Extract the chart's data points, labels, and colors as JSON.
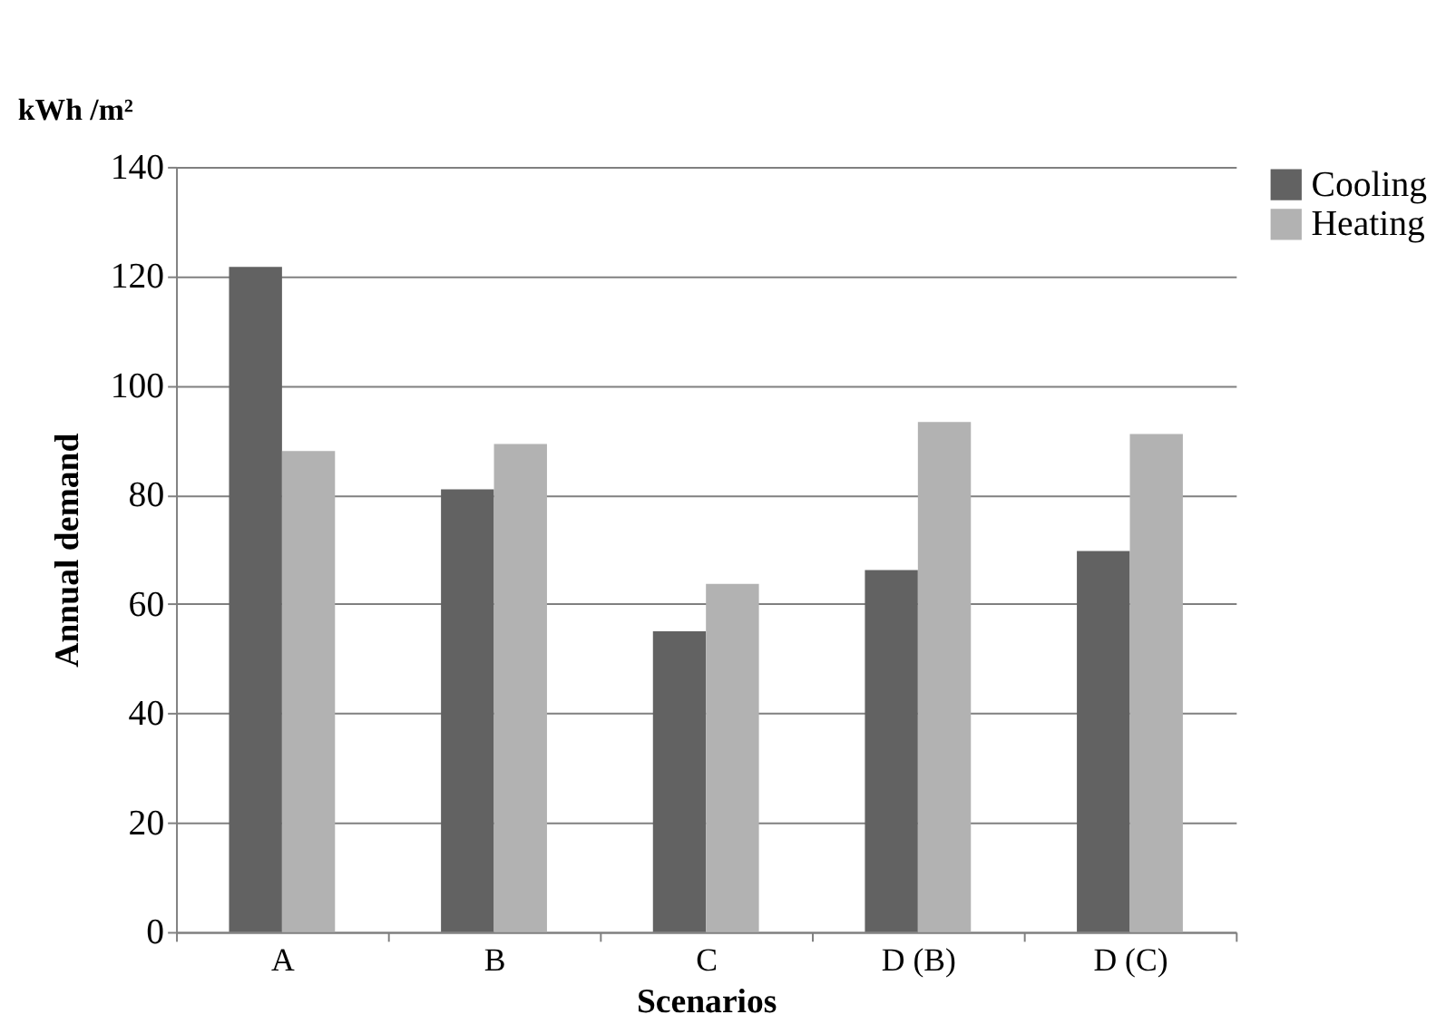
{
  "chart_data": {
    "type": "bar",
    "xlabel": "Scenarios",
    "ylabel": "Annual demand",
    "annotations": [
      "kWh /m²"
    ],
    "categories": [
      "A",
      "B",
      "C",
      "D (B)",
      "D (C)"
    ],
    "series": [
      {
        "name": "Cooling",
        "color": "#626262",
        "values": [
          121.7,
          81,
          55,
          66.2,
          69.7
        ]
      },
      {
        "name": "Heating",
        "color": "#b2b2b2",
        "values": [
          88,
          89.3,
          63.7,
          93.3,
          91.1
        ]
      }
    ],
    "ylim": [
      0,
      140
    ],
    "yticks": [
      0,
      20,
      40,
      60,
      80,
      100,
      120,
      140
    ],
    "grid": "y",
    "legend": "right"
  }
}
